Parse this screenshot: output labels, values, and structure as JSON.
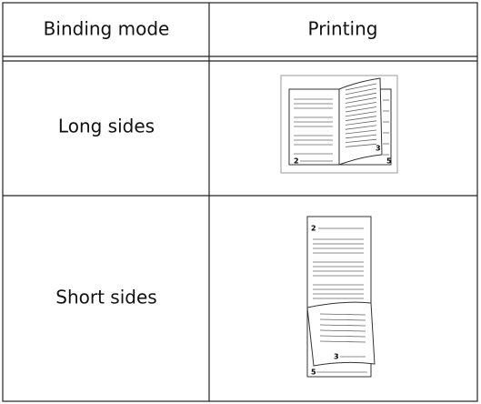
{
  "table": {
    "header": [
      "Binding mode",
      "Printing"
    ],
    "rows": [
      {
        "binding_mode": "Long sides",
        "page_labels": [
          "2",
          "3",
          "5"
        ]
      },
      {
        "binding_mode": "Short sides",
        "page_labels": [
          "2",
          "3",
          "5"
        ]
      }
    ]
  }
}
